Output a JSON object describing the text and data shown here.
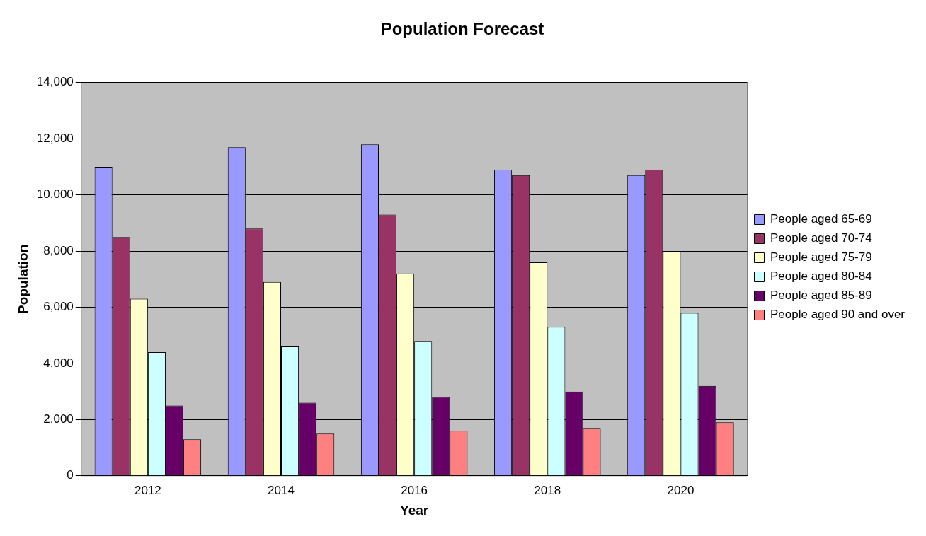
{
  "chart_data": {
    "type": "bar",
    "title": "Population Forecast",
    "xlabel": "Year",
    "ylabel": "Population",
    "categories": [
      "2012",
      "2014",
      "2016",
      "2018",
      "2020"
    ],
    "series": [
      {
        "name": "People aged 65-69",
        "color": "#9999ff",
        "values": [
          11000,
          11700,
          11800,
          10900,
          10700
        ]
      },
      {
        "name": "People aged 70-74",
        "color": "#993366",
        "values": [
          8500,
          8800,
          9300,
          10700,
          10900
        ]
      },
      {
        "name": "People aged 75-79",
        "color": "#ffffcc",
        "values": [
          6300,
          6900,
          7200,
          7600,
          8000
        ]
      },
      {
        "name": "People aged 80-84",
        "color": "#ccffff",
        "values": [
          4400,
          4600,
          4800,
          5300,
          5800
        ]
      },
      {
        "name": "People aged 85-89",
        "color": "#660066",
        "values": [
          2500,
          2600,
          2800,
          3000,
          3200
        ]
      },
      {
        "name": "People aged 90 and over",
        "color": "#ff8080",
        "values": [
          1300,
          1500,
          1600,
          1700,
          1900
        ]
      }
    ],
    "ylim": [
      0,
      14000
    ],
    "yticks": [
      0,
      {
        "value": 2000,
        "label": "2,000"
      },
      {
        "value": 4000,
        "label": "4,000"
      },
      {
        "value": 6000,
        "label": "6,000"
      },
      {
        "value": 8000,
        "label": "8,000"
      },
      {
        "value": 10000,
        "label": "10,000"
      },
      {
        "value": 12000,
        "label": "12,000"
      },
      {
        "value": 14000,
        "label": "14,000"
      }
    ],
    "grid": "y",
    "legend": "right"
  }
}
